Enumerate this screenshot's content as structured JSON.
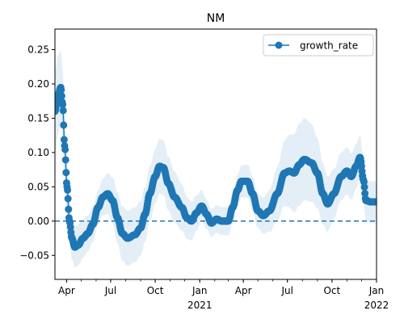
{
  "chart_data": {
    "type": "line",
    "title": "NM",
    "xlabel": "",
    "ylabel": "",
    "xlim": [
      "2020-03-08",
      "2022-01-01"
    ],
    "ylim": [
      -0.085,
      0.28
    ],
    "grid": false,
    "legend_position": "top-right",
    "y_ticks": [
      -0.05,
      0.0,
      0.05,
      0.1,
      0.15,
      0.2,
      0.25
    ],
    "y_tick_labels": [
      "−0.05",
      "0.00",
      "0.05",
      "0.10",
      "0.15",
      "0.20",
      "0.25"
    ],
    "x_ticks": [
      {
        "date": "2020-04-01",
        "label": "Apr",
        "sub": ""
      },
      {
        "date": "2020-07-01",
        "label": "Jul",
        "sub": ""
      },
      {
        "date": "2020-10-01",
        "label": "Oct",
        "sub": ""
      },
      {
        "date": "2021-01-01",
        "label": "Jan",
        "sub": "2021"
      },
      {
        "date": "2021-04-01",
        "label": "Apr",
        "sub": ""
      },
      {
        "date": "2021-07-01",
        "label": "Jul",
        "sub": ""
      },
      {
        "date": "2021-10-01",
        "label": "Oct",
        "sub": ""
      },
      {
        "date": "2022-01-01",
        "label": "Jan",
        "sub": "2022"
      }
    ],
    "reference_line": {
      "y": 0.0,
      "style": "dashed"
    },
    "colors": {
      "series": "#1f77b4",
      "band": "#1f77b4"
    },
    "series": [
      {
        "name": "growth_rate",
        "marker": "circle",
        "anchors": [
          {
            "date": "2020-03-08",
            "y": 0.16
          },
          {
            "date": "2020-03-15",
            "y": 0.185
          },
          {
            "date": "2020-03-20",
            "y": 0.195
          },
          {
            "date": "2020-03-24",
            "y": 0.17
          },
          {
            "date": "2020-03-28",
            "y": 0.11
          },
          {
            "date": "2020-04-02",
            "y": 0.05
          },
          {
            "date": "2020-04-07",
            "y": 0.0
          },
          {
            "date": "2020-04-12",
            "y": -0.025
          },
          {
            "date": "2020-04-18",
            "y": -0.038
          },
          {
            "date": "2020-04-25",
            "y": -0.035
          },
          {
            "date": "2020-05-05",
            "y": -0.025
          },
          {
            "date": "2020-05-15",
            "y": -0.018
          },
          {
            "date": "2020-05-25",
            "y": -0.005
          },
          {
            "date": "2020-06-05",
            "y": 0.02
          },
          {
            "date": "2020-06-15",
            "y": 0.035
          },
          {
            "date": "2020-06-25",
            "y": 0.04
          },
          {
            "date": "2020-07-05",
            "y": 0.03
          },
          {
            "date": "2020-07-15",
            "y": 0.005
          },
          {
            "date": "2020-07-25",
            "y": -0.018
          },
          {
            "date": "2020-08-05",
            "y": -0.025
          },
          {
            "date": "2020-08-20",
            "y": -0.02
          },
          {
            "date": "2020-09-01",
            "y": -0.01
          },
          {
            "date": "2020-09-10",
            "y": 0.01
          },
          {
            "date": "2020-09-20",
            "y": 0.04
          },
          {
            "date": "2020-10-01",
            "y": 0.065
          },
          {
            "date": "2020-10-10",
            "y": 0.08
          },
          {
            "date": "2020-10-18",
            "y": 0.078
          },
          {
            "date": "2020-10-28",
            "y": 0.055
          },
          {
            "date": "2020-11-10",
            "y": 0.035
          },
          {
            "date": "2020-11-25",
            "y": 0.02
          },
          {
            "date": "2020-12-05",
            "y": 0.005
          },
          {
            "date": "2020-12-15",
            "y": 0.0
          },
          {
            "date": "2020-12-25",
            "y": 0.012
          },
          {
            "date": "2021-01-05",
            "y": 0.022
          },
          {
            "date": "2021-01-15",
            "y": 0.01
          },
          {
            "date": "2021-01-25",
            "y": -0.003
          },
          {
            "date": "2021-02-05",
            "y": 0.003
          },
          {
            "date": "2021-02-15",
            "y": 0.0
          },
          {
            "date": "2021-03-01",
            "y": 0.0
          },
          {
            "date": "2021-03-10",
            "y": 0.02
          },
          {
            "date": "2021-03-20",
            "y": 0.045
          },
          {
            "date": "2021-03-28",
            "y": 0.058
          },
          {
            "date": "2021-04-10",
            "y": 0.058
          },
          {
            "date": "2021-04-20",
            "y": 0.04
          },
          {
            "date": "2021-05-01",
            "y": 0.015
          },
          {
            "date": "2021-05-12",
            "y": 0.008
          },
          {
            "date": "2021-05-25",
            "y": 0.015
          },
          {
            "date": "2021-06-10",
            "y": 0.04
          },
          {
            "date": "2021-06-25",
            "y": 0.07
          },
          {
            "date": "2021-07-05",
            "y": 0.073
          },
          {
            "date": "2021-07-15",
            "y": 0.07
          },
          {
            "date": "2021-07-25",
            "y": 0.082
          },
          {
            "date": "2021-08-05",
            "y": 0.09
          },
          {
            "date": "2021-08-20",
            "y": 0.085
          },
          {
            "date": "2021-09-01",
            "y": 0.07
          },
          {
            "date": "2021-09-12",
            "y": 0.04
          },
          {
            "date": "2021-09-22",
            "y": 0.025
          },
          {
            "date": "2021-10-05",
            "y": 0.04
          },
          {
            "date": "2021-10-20",
            "y": 0.065
          },
          {
            "date": "2021-11-01",
            "y": 0.073
          },
          {
            "date": "2021-11-10",
            "y": 0.065
          },
          {
            "date": "2021-11-20",
            "y": 0.08
          },
          {
            "date": "2021-11-28",
            "y": 0.093
          },
          {
            "date": "2021-12-05",
            "y": 0.06
          },
          {
            "date": "2021-12-10",
            "y": 0.03
          },
          {
            "date": "2021-12-20",
            "y": 0.028
          },
          {
            "date": "2022-01-01",
            "y": 0.028
          }
        ]
      }
    ],
    "band_halfwidth": [
      {
        "date": "2020-03-08",
        "w": 0.06
      },
      {
        "date": "2020-04-15",
        "w": 0.03
      },
      {
        "date": "2020-06-01",
        "w": 0.025
      },
      {
        "date": "2020-08-01",
        "w": 0.04
      },
      {
        "date": "2020-10-15",
        "w": 0.04
      },
      {
        "date": "2021-02-01",
        "w": 0.02
      },
      {
        "date": "2021-05-01",
        "w": 0.025
      },
      {
        "date": "2021-08-01",
        "w": 0.06
      },
      {
        "date": "2021-10-15",
        "w": 0.035
      },
      {
        "date": "2022-01-01",
        "w": 0.03
      }
    ]
  }
}
